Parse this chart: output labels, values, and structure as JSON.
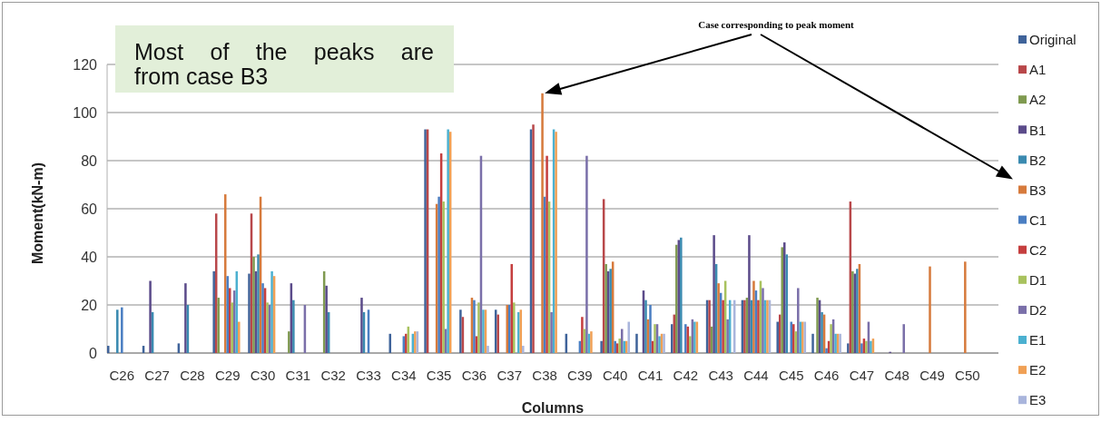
{
  "chart_data": {
    "type": "bar",
    "xlabel": "Columns",
    "ylabel": "Moment(kN-m)",
    "categories": [
      "C26",
      "C27",
      "C28",
      "C29",
      "C30",
      "C31",
      "C32",
      "C33",
      "C34",
      "C35",
      "C36",
      "C37",
      "C38",
      "C39",
      "C40",
      "C41",
      "C42",
      "C43",
      "C44",
      "C45",
      "C46",
      "C47",
      "C48",
      "C49",
      "C50"
    ],
    "series": [
      {
        "name": "Original",
        "color": "#3f639a",
        "values": [
          3,
          3,
          4,
          34,
          33,
          null,
          null,
          null,
          8,
          93,
          18,
          18,
          93,
          8,
          5,
          8,
          12,
          22,
          22,
          13,
          8,
          4,
          null,
          null,
          null
        ]
      },
      {
        "name": "A1",
        "color": "#b8474a",
        "values": [
          null,
          null,
          null,
          58,
          58,
          null,
          null,
          null,
          null,
          93,
          15,
          16,
          95,
          null,
          64,
          null,
          16,
          22,
          22,
          16,
          null,
          63,
          null,
          null,
          null
        ]
      },
      {
        "name": "A2",
        "color": "#7f9a50",
        "values": [
          null,
          null,
          null,
          23,
          40,
          9,
          34,
          null,
          null,
          null,
          null,
          null,
          null,
          null,
          37,
          null,
          45,
          11,
          23,
          44,
          23,
          34,
          null,
          null,
          null
        ]
      },
      {
        "name": "B1",
        "color": "#5b4b8a",
        "values": [
          null,
          30,
          29,
          null,
          34,
          29,
          28,
          23,
          null,
          null,
          null,
          null,
          null,
          null,
          34,
          26,
          47,
          49,
          49,
          46,
          22,
          33,
          0.5,
          null,
          null
        ]
      },
      {
        "name": "B2",
        "color": "#3a8ab0",
        "values": [
          18,
          17,
          20,
          null,
          41,
          22,
          17,
          17,
          null,
          null,
          null,
          null,
          null,
          null,
          35,
          22,
          48,
          37,
          22,
          41,
          17,
          35,
          null,
          null,
          null
        ]
      },
      {
        "name": "B3",
        "color": "#d67a3c",
        "values": [
          null,
          null,
          null,
          66,
          65,
          null,
          null,
          null,
          null,
          62,
          23,
          20,
          108,
          null,
          38,
          14,
          null,
          29,
          30,
          null,
          16,
          37,
          null,
          36,
          38
        ]
      },
      {
        "name": "C1",
        "color": "#4a7ec2",
        "values": [
          19,
          null,
          null,
          32,
          29,
          null,
          null,
          18,
          7,
          65,
          22,
          20,
          65,
          5,
          5,
          20,
          12,
          25,
          26,
          13,
          2,
          4,
          null,
          null,
          null
        ]
      },
      {
        "name": "C2",
        "color": "#c53e3e",
        "values": [
          null,
          null,
          null,
          27,
          27,
          null,
          null,
          null,
          8,
          83,
          7,
          37,
          82,
          15,
          4,
          5,
          11,
          22,
          22,
          12,
          5,
          6,
          null,
          null,
          null
        ]
      },
      {
        "name": "D1",
        "color": "#a8c25e",
        "values": [
          null,
          null,
          null,
          21,
          21,
          null,
          null,
          null,
          11,
          63,
          21,
          21,
          63,
          10,
          6,
          12,
          7,
          30,
          30,
          9,
          12,
          5,
          null,
          null,
          null
        ]
      },
      {
        "name": "D2",
        "color": "#7a6fa9",
        "values": [
          null,
          null,
          null,
          26,
          20,
          20,
          null,
          null,
          null,
          10,
          82,
          null,
          17,
          82,
          10,
          12,
          14,
          14,
          27,
          27,
          14,
          13,
          12,
          null,
          null
        ]
      },
      {
        "name": "E1",
        "color": "#4bb0d0",
        "values": [
          null,
          null,
          null,
          34,
          34,
          null,
          null,
          null,
          8,
          93,
          18,
          17,
          93,
          8,
          5,
          7,
          13,
          22,
          22,
          13,
          8,
          5,
          null,
          null,
          null
        ]
      },
      {
        "name": "E2",
        "color": "#f0a055",
        "values": [
          null,
          null,
          null,
          13,
          32,
          null,
          null,
          null,
          9,
          92,
          18,
          18,
          92,
          9,
          5,
          8,
          13,
          null,
          22,
          13,
          8,
          6,
          null,
          null,
          null
        ]
      },
      {
        "name": "E3",
        "color": "#a9b5dc",
        "values": [
          null,
          null,
          null,
          null,
          null,
          null,
          null,
          null,
          9,
          null,
          3,
          3,
          null,
          null,
          13,
          8,
          null,
          22,
          22,
          13,
          8,
          null,
          null,
          null,
          null
        ]
      }
    ],
    "ylim": [
      0,
      120
    ],
    "yticks": [
      0,
      20,
      40,
      60,
      80,
      100,
      120
    ],
    "grid": "y",
    "legend": "right",
    "annotations": [
      "Most of the peaks are from case B3",
      {
        "text": "Case corresponding to peak moment",
        "x": "C38",
        "y": 108
      }
    ]
  }
}
